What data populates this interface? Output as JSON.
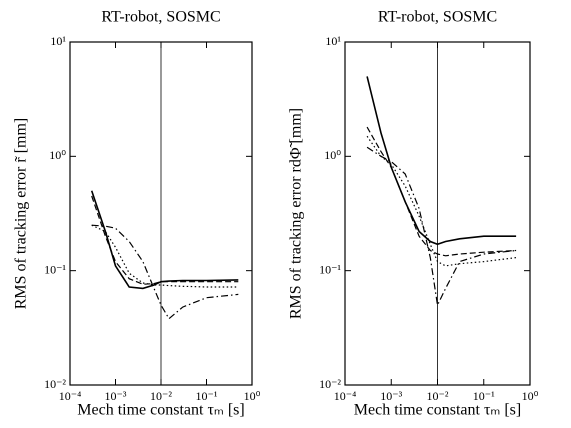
{
  "chart_data": [
    {
      "type": "line",
      "title": "RT-robot, SOSMC",
      "xlabel": "Mech time constant τₘ [s]",
      "ylabel": "RMS of tracking error r̃ [mm]",
      "xscale": "log",
      "yscale": "log",
      "vline": 0.01,
      "x": [
        0.0003,
        0.0006,
        0.001,
        0.002,
        0.004,
        0.007,
        0.01,
        0.015,
        0.03,
        0.1,
        0.5
      ],
      "xlim": [
        0.0001,
        1
      ],
      "ylim": [
        0.01,
        10
      ],
      "xticks": [
        {
          "value": 0.0001,
          "label": "10⁻⁴"
        },
        {
          "value": 0.001,
          "label": "10⁻³"
        },
        {
          "value": 0.01,
          "label": "10⁻²"
        },
        {
          "value": 0.1,
          "label": "10⁻¹"
        },
        {
          "value": 1,
          "label": "10⁰"
        }
      ],
      "yticks": [
        {
          "value": 0.01,
          "label": "10⁻²"
        },
        {
          "value": 0.1,
          "label": "10⁻¹"
        },
        {
          "value": 1,
          "label": "10⁰"
        },
        {
          "value": 10,
          "label": "10¹"
        }
      ],
      "series": [
        {
          "color": "#000000",
          "dash": "solid",
          "values": [
            0.5,
            0.22,
            0.11,
            0.072,
            0.07,
            0.075,
            0.08,
            0.081,
            0.082,
            0.082,
            0.083
          ]
        },
        {
          "color": "#000000",
          "dash": "dashed",
          "values": [
            0.45,
            0.2,
            0.12,
            0.085,
            0.076,
            0.077,
            0.08,
            0.08,
            0.08,
            0.08,
            0.08
          ]
        },
        {
          "color": "#000000",
          "dash": "dotted",
          "values": [
            0.25,
            0.22,
            0.16,
            0.095,
            0.078,
            0.075,
            0.075,
            0.074,
            0.073,
            0.072,
            0.072
          ]
        },
        {
          "color": "#000000",
          "dash": "dashdot",
          "values": [
            0.25,
            0.245,
            0.235,
            0.18,
            0.12,
            0.07,
            0.05,
            0.038,
            0.048,
            0.058,
            0.062
          ]
        }
      ]
    },
    {
      "type": "line",
      "title": "RT-robot, SOSMC",
      "xlabel": "Mech time constant τₘ [s]",
      "ylabel": "RMS of tracking error rdΦ̃ [mm]",
      "xscale": "log",
      "yscale": "log",
      "vline": 0.01,
      "x": [
        0.0003,
        0.0006,
        0.001,
        0.002,
        0.004,
        0.007,
        0.01,
        0.015,
        0.03,
        0.1,
        0.5
      ],
      "xlim": [
        0.0001,
        1
      ],
      "ylim": [
        0.01,
        10
      ],
      "xticks": [
        {
          "value": 0.0001,
          "label": "10⁻⁴"
        },
        {
          "value": 0.001,
          "label": "10⁻³"
        },
        {
          "value": 0.01,
          "label": "10⁻²"
        },
        {
          "value": 0.1,
          "label": "10⁻¹"
        },
        {
          "value": 1,
          "label": "10⁰"
        }
      ],
      "yticks": [
        {
          "value": 0.01,
          "label": "10⁻²"
        },
        {
          "value": 0.1,
          "label": "10⁻¹"
        },
        {
          "value": 1,
          "label": "10⁰"
        },
        {
          "value": 10,
          "label": "10¹"
        }
      ],
      "series": [
        {
          "color": "#000000",
          "dash": "solid",
          "values": [
            5,
            1.6,
            0.8,
            0.4,
            0.22,
            0.18,
            0.17,
            0.18,
            0.19,
            0.2,
            0.2
          ]
        },
        {
          "color": "#000000",
          "dash": "dashed",
          "values": [
            1.8,
            1.1,
            0.8,
            0.4,
            0.2,
            0.15,
            0.14,
            0.135,
            0.14,
            0.145,
            0.15
          ]
        },
        {
          "color": "#000000",
          "dash": "dotted",
          "values": [
            1.5,
            1.0,
            0.85,
            0.55,
            0.3,
            0.17,
            0.12,
            0.11,
            0.115,
            0.12,
            0.13
          ]
        },
        {
          "color": "#000000",
          "dash": "dashdot",
          "values": [
            1.2,
            1.0,
            0.9,
            0.7,
            0.35,
            0.13,
            0.05,
            0.07,
            0.12,
            0.14,
            0.15
          ]
        }
      ]
    }
  ]
}
